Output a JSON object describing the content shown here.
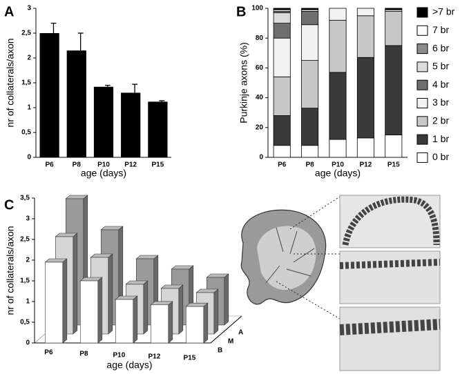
{
  "chart_data": [
    {
      "panel": "A",
      "type": "bar",
      "categories": [
        "P6",
        "P8",
        "P10",
        "P12",
        "P15"
      ],
      "values": [
        2.5,
        2.15,
        1.42,
        1.3,
        1.12
      ],
      "errors": [
        0.2,
        0.35,
        0.03,
        0.17,
        0.02
      ],
      "color": "#000000",
      "ylim": [
        0,
        3
      ],
      "yticks": [
        0,
        {
          "value": 0.5,
          "label": "0,5"
        },
        1,
        {
          "value": 1.5,
          "label": "1,5"
        },
        2,
        {
          "value": 2.5,
          "label": "2,5"
        },
        3
      ],
      "ylabel": "nr of collaterals/axon",
      "xlabel": "age (days)"
    },
    {
      "panel": "B",
      "type": "stacked-bar",
      "categories": [
        "P6",
        "P8",
        "P10",
        "P12",
        "P15"
      ],
      "ylim": [
        0,
        100
      ],
      "yticks": [
        0,
        20,
        40,
        60,
        80,
        100
      ],
      "ylabel": "Purkinje axons (%)",
      "xlabel": "age (days)",
      "legend": "right",
      "series": [
        {
          "name": "0 br",
          "color": "#ffffff",
          "values": [
            8,
            8,
            12,
            13,
            15
          ]
        },
        {
          "name": "1 br",
          "color": "#3a3a3a",
          "values": [
            20,
            25,
            45,
            54,
            60
          ]
        },
        {
          "name": "2 br",
          "color": "#c8c8c8",
          "values": [
            26,
            32,
            35,
            28,
            23
          ]
        },
        {
          "name": "3 br",
          "color": "#f2f2f2",
          "values": [
            26,
            24,
            8,
            5,
            1
          ]
        },
        {
          "name": "4 br",
          "color": "#6e6e6e",
          "values": [
            10,
            9,
            0,
            0,
            0
          ]
        },
        {
          "name": "5 br",
          "color": "#dcdcdc",
          "values": [
            7,
            0,
            0,
            0,
            0
          ]
        },
        {
          "name": "6 br",
          "color": "#8c8c8c",
          "values": [
            1,
            0,
            0,
            0,
            0
          ]
        },
        {
          "name": "7 br",
          "color": "#fafafa",
          "values": [
            1,
            1,
            0,
            0,
            0
          ]
        },
        {
          "name": ">7 br",
          "color": "#000000",
          "values": [
            1,
            1,
            0,
            0,
            1
          ]
        }
      ]
    },
    {
      "panel": "C",
      "type": "bar3d",
      "categories": [
        "P6",
        "P8",
        "P10",
        "P12",
        "P15"
      ],
      "ylim": [
        0,
        3.5
      ],
      "yticks": [
        0,
        {
          "value": 0.5,
          "label": "0,5"
        },
        1,
        {
          "value": 1.5,
          "label": "1,5"
        },
        2,
        {
          "value": 2.5,
          "label": "2,5"
        },
        3,
        {
          "value": 3.5,
          "label": "3,5"
        }
      ],
      "ylabel": "nr of collaterals/axon",
      "xlabel": "age (days)",
      "series": [
        {
          "name": "B",
          "color": "#ffffff",
          "values": [
            1.95,
            1.5,
            1.05,
            0.92,
            0.88
          ]
        },
        {
          "name": "M",
          "color": "#d6d6d6",
          "values": [
            2.35,
            1.85,
            1.2,
            1.1,
            1.0
          ]
        },
        {
          "name": "A",
          "color": "#9a9a9a",
          "values": [
            3.05,
            2.3,
            1.6,
            1.35,
            1.15
          ]
        }
      ]
    }
  ]
}
